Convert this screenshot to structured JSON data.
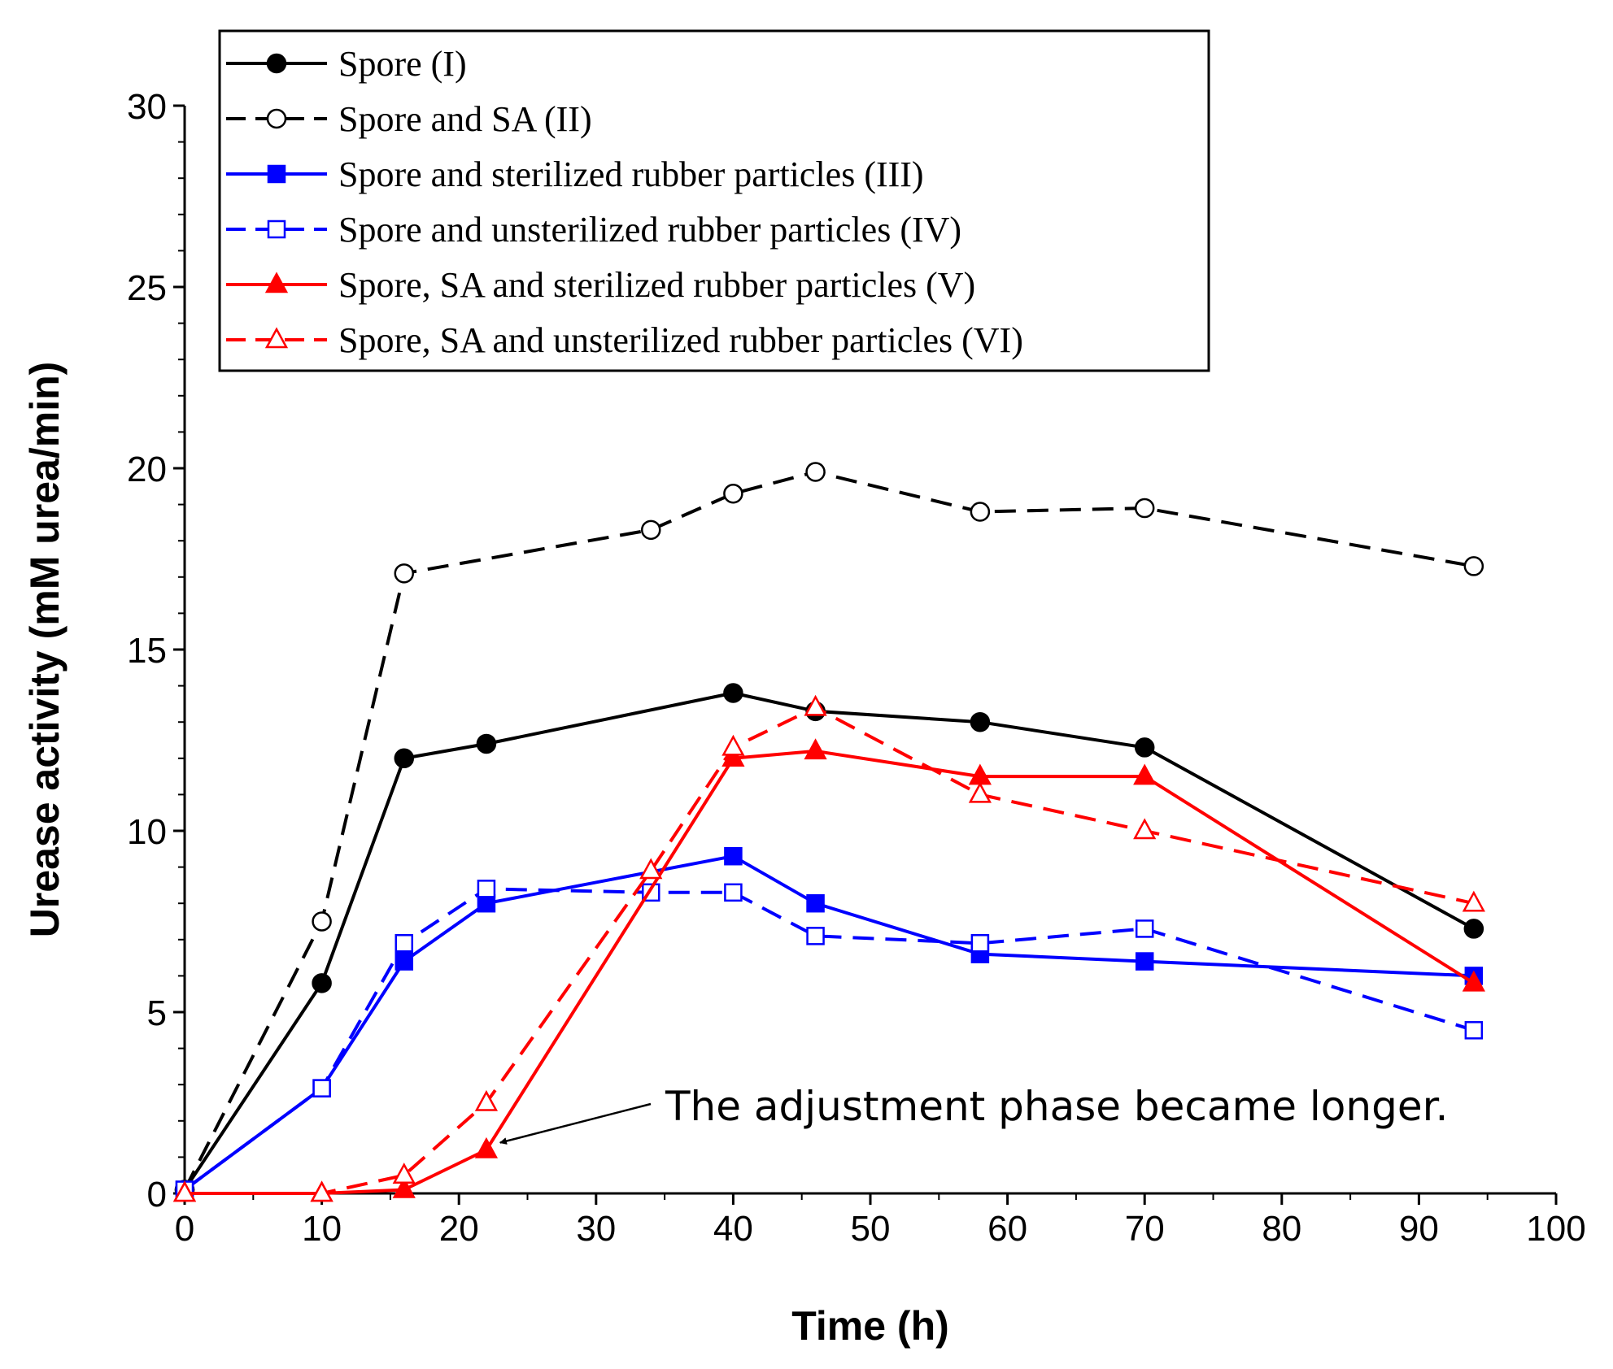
{
  "chart_data": {
    "type": "line",
    "title": "",
    "xlabel": "Time (h)",
    "ylabel": "Urease activity (mM urea/min)",
    "xlim": [
      0,
      100
    ],
    "ylim": [
      0,
      30
    ],
    "xticks": [
      0,
      10,
      20,
      30,
      40,
      50,
      60,
      70,
      80,
      90,
      100
    ],
    "yticks": [
      0,
      5,
      10,
      15,
      20,
      25,
      30
    ],
    "grid": false,
    "legend_position": "top",
    "series": [
      {
        "name": "Spore (I)",
        "color": "#000000",
        "line": "solid",
        "marker": "circle",
        "filled": true,
        "x": [
          0,
          10,
          16,
          22,
          40,
          46,
          58,
          70,
          94
        ],
        "y": [
          0.1,
          5.8,
          12.0,
          12.4,
          13.8,
          13.3,
          13.0,
          12.3,
          7.3
        ]
      },
      {
        "name": "Spore and SA  (II)",
        "color": "#000000",
        "line": "dashed",
        "marker": "circle",
        "filled": false,
        "x": [
          0,
          10,
          16,
          34,
          40,
          46,
          58,
          70,
          94
        ],
        "y": [
          0.1,
          7.5,
          17.1,
          18.3,
          19.3,
          19.9,
          18.8,
          18.9,
          17.3
        ]
      },
      {
        "name": "Spore and sterilized rubber particles (III)",
        "color": "#0000ff",
        "line": "solid",
        "marker": "square",
        "filled": true,
        "x": [
          0,
          10,
          16,
          22,
          40,
          46,
          58,
          70,
          94
        ],
        "y": [
          0.1,
          2.9,
          6.4,
          8.0,
          9.3,
          8.0,
          6.6,
          6.4,
          6.0
        ]
      },
      {
        "name": "Spore and unsterilized rubber particles (IV)",
        "color": "#0000ff",
        "line": "dashed",
        "marker": "square",
        "filled": false,
        "x": [
          0,
          10,
          16,
          22,
          34,
          40,
          46,
          58,
          70,
          94
        ],
        "y": [
          0.1,
          2.9,
          6.9,
          8.4,
          8.3,
          8.3,
          7.1,
          6.9,
          7.3,
          4.5
        ]
      },
      {
        "name": "Spore, SA  and sterilized rubber particles (V)",
        "color": "#ff0000",
        "line": "solid",
        "marker": "triangle",
        "filled": true,
        "x": [
          0,
          10,
          16,
          22,
          40,
          46,
          58,
          70,
          94
        ],
        "y": [
          0.0,
          0.0,
          0.1,
          1.2,
          12.0,
          12.2,
          11.5,
          11.5,
          5.8
        ]
      },
      {
        "name": "Spore, SA  and unsterilized rubber particles (VI)",
        "color": "#ff0000",
        "line": "dashed",
        "marker": "triangle",
        "filled": false,
        "x": [
          0,
          10,
          16,
          22,
          34,
          40,
          46,
          58,
          70,
          94
        ],
        "y": [
          0.0,
          0.0,
          0.5,
          2.5,
          8.9,
          12.3,
          13.4,
          11.0,
          10.0,
          8.0
        ]
      }
    ],
    "annotations": [
      {
        "text": "The adjustment phase became longer.",
        "arrow_to": {
          "x": 23,
          "y": 1.4
        }
      }
    ]
  }
}
